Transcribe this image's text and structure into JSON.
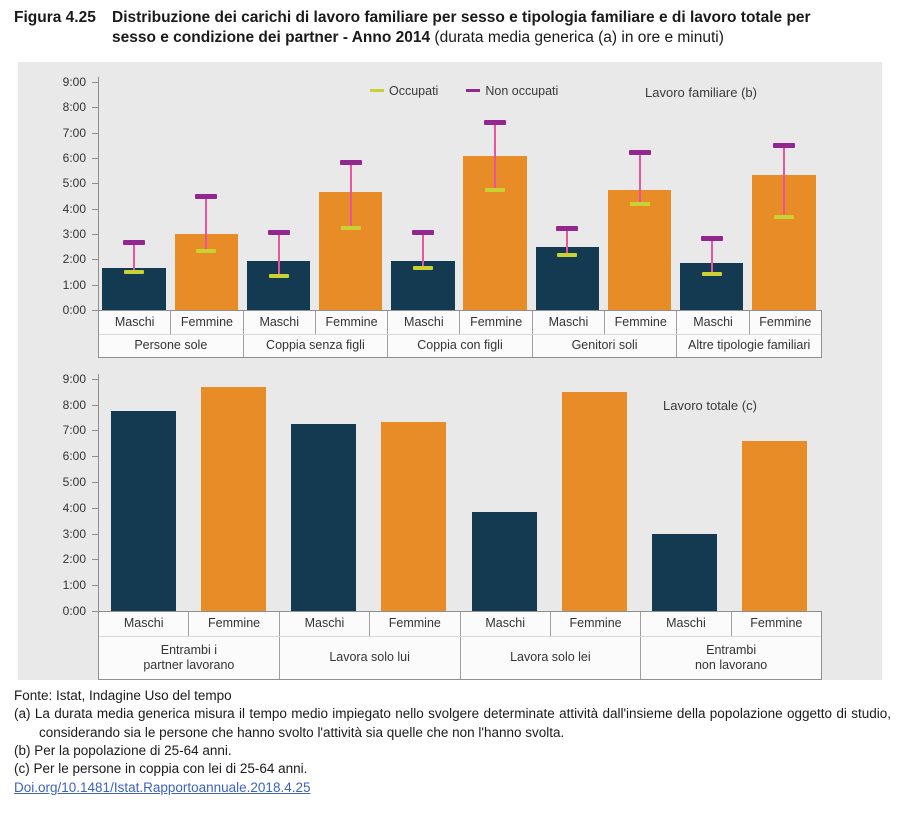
{
  "header": {
    "figure_label": "Figura 4.25",
    "title_bold": "Distribuzione dei carichi di lavoro familiare per sesso e tipologia familiare e di lavoro totale per sesso e condizione dei partner - Anno 2014",
    "title_note": " (durata media generica (a) in ore e minuti)"
  },
  "colors": {
    "maschi_bar": "#133A50",
    "femmine_bar": "#E78C26",
    "panel_bg": "#E9E9E9",
    "errorbar_line": "#E8559F",
    "non_occupati_marker": "#92278F",
    "occupati_marker": "#C9D232",
    "link": "#3D63BE",
    "axis": "#8f8f8f"
  },
  "chart_data": [
    {
      "type": "bar",
      "title": "Lavoro familiare (b)",
      "unit": "durata media generica in ore e minuti",
      "ylim": [
        "0:00",
        "9:00"
      ],
      "yticks": [
        "9:00",
        "8:00",
        "7:00",
        "6:00",
        "5:00",
        "4:00",
        "3:00",
        "2:00",
        "1:00",
        "0:00"
      ],
      "grid": false,
      "legend_position": "top-center",
      "legend": [
        {
          "label": "Occupati",
          "color": "#C9D232"
        },
        {
          "label": "Non occupati",
          "color": "#92278F"
        }
      ],
      "groups": [
        {
          "label": "Persone sole",
          "label_lines": [
            "Persone sole"
          ],
          "bars": [
            {
              "sex": "Maschi",
              "value": "1:40",
              "occupati": "1:30",
              "non_occupati": "2:40"
            },
            {
              "sex": "Femmine",
              "value": "3:00",
              "occupati": "2:20",
              "non_occupati": "4:30"
            }
          ]
        },
        {
          "label": "Coppia senza figli",
          "label_lines": [
            "Coppia senza figli"
          ],
          "bars": [
            {
              "sex": "Maschi",
              "value": "1:55",
              "occupati": "1:20",
              "non_occupati": "3:05"
            },
            {
              "sex": "Femmine",
              "value": "4:40",
              "occupati": "3:15",
              "non_occupati": "5:50"
            }
          ]
        },
        {
          "label": "Coppia con figli",
          "label_lines": [
            "Coppia con figli"
          ],
          "bars": [
            {
              "sex": "Maschi",
              "value": "1:55",
              "occupati": "1:40",
              "non_occupati": "3:05"
            },
            {
              "sex": "Femmine",
              "value": "6:05",
              "occupati": "4:45",
              "non_occupati": "7:25"
            }
          ]
        },
        {
          "label": "Genitori soli",
          "label_lines": [
            "Genitori soli"
          ],
          "bars": [
            {
              "sex": "Maschi",
              "value": "2:30",
              "occupati": "2:10",
              "non_occupati": "3:15"
            },
            {
              "sex": "Femmine",
              "value": "4:45",
              "occupati": "4:10",
              "non_occupati": "6:15"
            }
          ]
        },
        {
          "label": "Altre tipologie familiari",
          "label_lines": [
            "Altre tipologie familiari"
          ],
          "bars": [
            {
              "sex": "Maschi",
              "value": "1:50",
              "occupati": "1:25",
              "non_occupati": "2:50"
            },
            {
              "sex": "Femmine",
              "value": "5:20",
              "occupati": "3:40",
              "non_occupati": "6:30"
            }
          ]
        }
      ]
    },
    {
      "type": "bar",
      "title": "Lavoro totale (c)",
      "unit": "durata media generica in ore e minuti",
      "ylim": [
        "0:00",
        "9:00"
      ],
      "yticks": [
        "9:00",
        "8:00",
        "7:00",
        "6:00",
        "5:00",
        "4:00",
        "3:00",
        "2:00",
        "1:00",
        "0:00"
      ],
      "grid": false,
      "groups": [
        {
          "label": "Entrambi i partner lavorano",
          "label_lines": [
            "Entrambi i",
            "partner lavorano"
          ],
          "bars": [
            {
              "sex": "Maschi",
              "value": "7:45"
            },
            {
              "sex": "Femmine",
              "value": "8:40"
            }
          ]
        },
        {
          "label": "Lavora solo lui",
          "label_lines": [
            "Lavora solo lui"
          ],
          "bars": [
            {
              "sex": "Maschi",
              "value": "7:15"
            },
            {
              "sex": "Femmine",
              "value": "7:20"
            }
          ]
        },
        {
          "label": "Lavora solo lei",
          "label_lines": [
            "Lavora solo lei"
          ],
          "bars": [
            {
              "sex": "Maschi",
              "value": "3:50"
            },
            {
              "sex": "Femmine",
              "value": "8:30"
            }
          ]
        },
        {
          "label": "Entrambi non lavorano",
          "label_lines": [
            "Entrambi",
            "non lavorano"
          ],
          "bars": [
            {
              "sex": "Maschi",
              "value": "3:00"
            },
            {
              "sex": "Femmine",
              "value": "6:35"
            }
          ]
        }
      ]
    }
  ],
  "footer": {
    "source": "Fonte: Istat, Indagine Uso del tempo",
    "note_a": "(a) La durata media generica misura il tempo medio impiegato nello svolgere determinate attività dall'insieme della popolazione oggetto di studio, considerando sia le persone che hanno svolto l'attività sia quelle che non l'hanno svolta.",
    "note_b": "(b) Per la popolazione di 25-64 anni.",
    "note_c": "(c) Per le persone in coppia con lei di 25-64 anni.",
    "doi": "Doi.org/10.1481/Istat.Rapportoannuale.2018.4.25"
  }
}
